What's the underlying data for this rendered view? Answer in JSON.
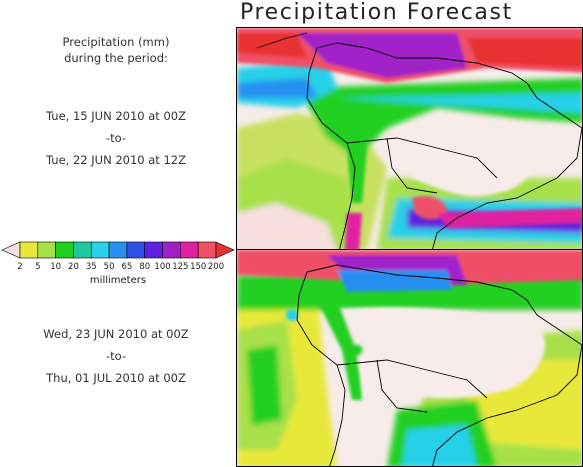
{
  "title": "Precipitation Forecast",
  "description": {
    "line1": "Precipitation (mm)",
    "line2": "during the period:"
  },
  "periods": [
    {
      "start": "Tue, 15 JUN 2010 at 00Z",
      "separator": "-to-",
      "end": "Tue, 22 JUN 2010 at 12Z"
    },
    {
      "start": "Wed, 23 JUN 2010 at 00Z",
      "separator": "-to-",
      "end": "Thu, 01 JUL 2010 at 00Z"
    }
  ],
  "legend": {
    "unit": "millimeters",
    "ticks": [
      "2",
      "5",
      "10",
      "20",
      "35",
      "50",
      "65",
      "80",
      "100",
      "125",
      "150",
      "200"
    ],
    "colors": [
      "#f7dfe0",
      "#e8e83a",
      "#a8e04a",
      "#20d020",
      "#20c8a0",
      "#28d0e8",
      "#2890f0",
      "#3050e8",
      "#6020e0",
      "#a020c8",
      "#e020a0",
      "#f05068",
      "#e83030"
    ]
  }
}
